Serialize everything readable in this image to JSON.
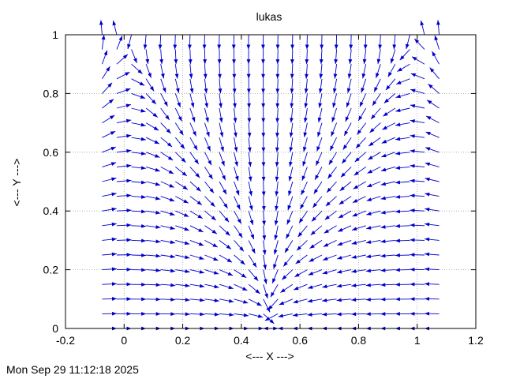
{
  "chart_data": {
    "type": "vector-field",
    "title": "lukas",
    "xlabel": "<--- X --->",
    "ylabel": "<--- Y --->",
    "xlim": [
      -0.2,
      1.2
    ],
    "ylim": [
      0,
      1
    ],
    "xticks": [
      "-0.2",
      "0",
      "0.2",
      "0.4",
      "0.6",
      "0.8",
      "1",
      "1.2"
    ],
    "yticks": [
      "0",
      "0.2",
      "0.4",
      "0.6",
      "0.8",
      "1"
    ],
    "grid": true,
    "arrow_color": "#0000cc",
    "field": {
      "x_range": [
        -0.075,
        1.075
      ],
      "y_range": [
        0,
        1
      ],
      "nx": 24,
      "ny": 21
    }
  },
  "footer": {
    "timestamp": "Mon Sep 29 11:12:18 2025"
  }
}
